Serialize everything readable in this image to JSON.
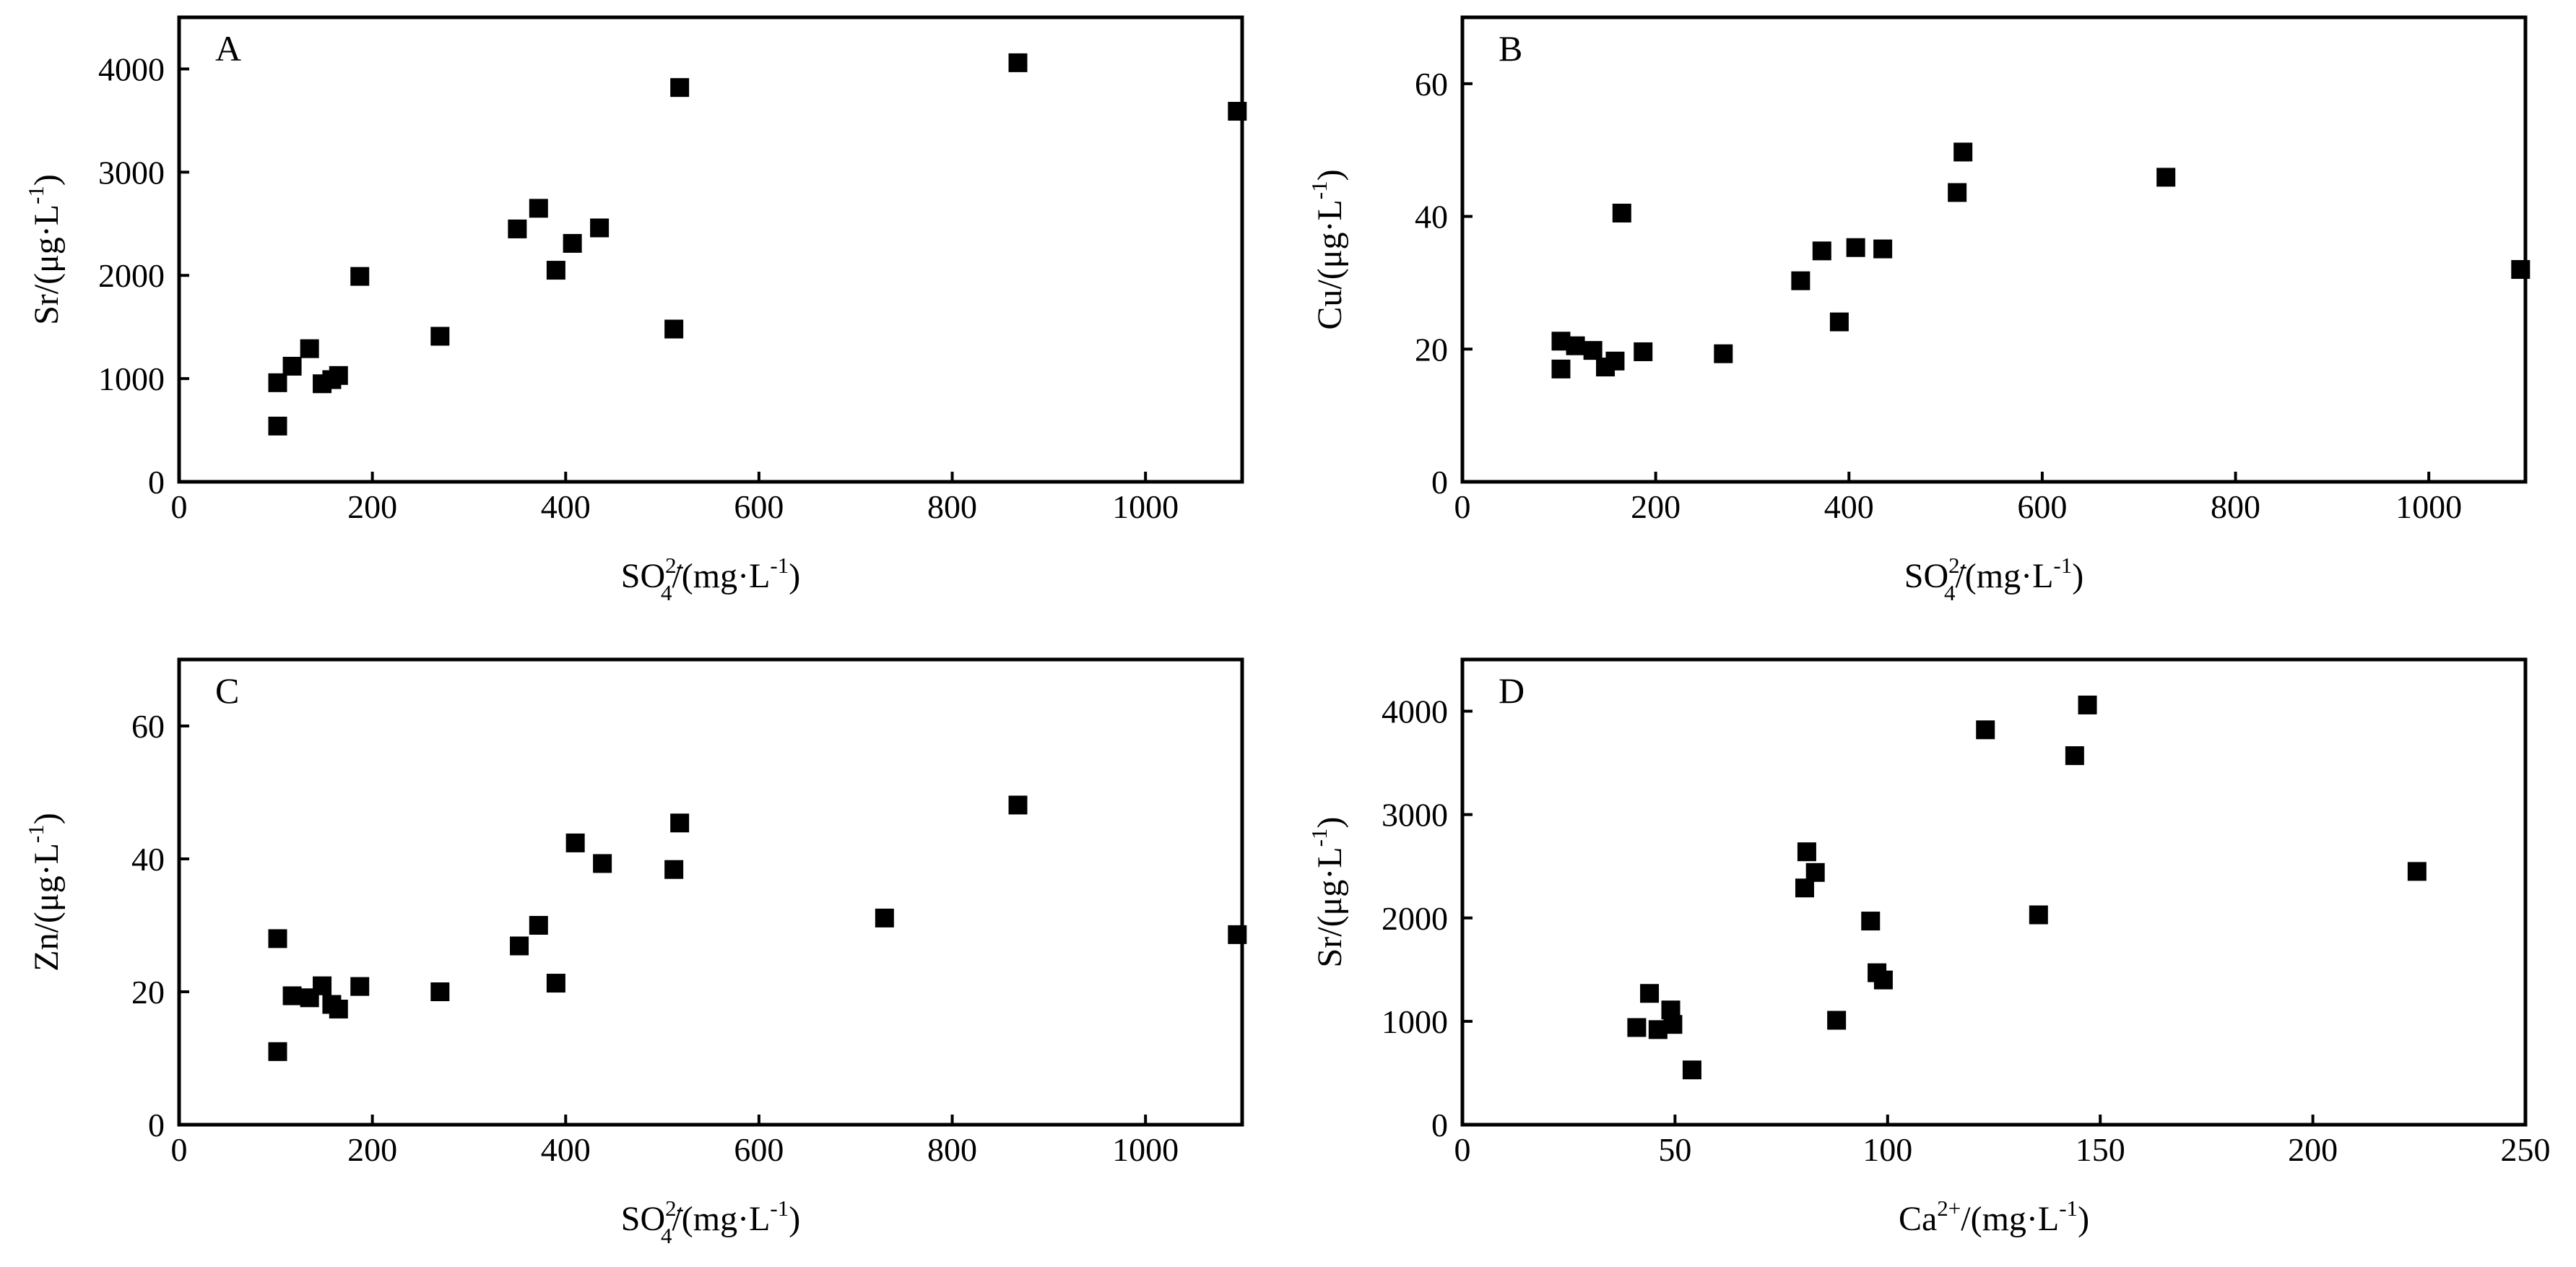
{
  "chart_data": [
    {
      "type": "scatter",
      "panel": "A",
      "xlim": [
        0,
        1100
      ],
      "ylim": [
        0,
        4500
      ],
      "x_ticks": [
        0,
        200,
        400,
        600,
        800,
        1000
      ],
      "y_ticks": [
        0,
        1000,
        2000,
        3000,
        4000
      ],
      "xlabel": {
        "base": "SO",
        "sub": "4",
        "sup": "2-",
        "rest": "/(mg·L",
        "unit_sup": "-1",
        "close": ")"
      },
      "ylabel": {
        "base": "Sr/(μg·L",
        "sup": "-1",
        "close": ")"
      },
      "marker_color": "#000000",
      "points": [
        {
          "x": 102,
          "y": 540
        },
        {
          "x": 102,
          "y": 960
        },
        {
          "x": 117,
          "y": 1120
        },
        {
          "x": 135,
          "y": 1290
        },
        {
          "x": 148,
          "y": 950
        },
        {
          "x": 158,
          "y": 990
        },
        {
          "x": 165,
          "y": 1030
        },
        {
          "x": 187,
          "y": 1990
        },
        {
          "x": 270,
          "y": 1410
        },
        {
          "x": 350,
          "y": 2450
        },
        {
          "x": 372,
          "y": 2650
        },
        {
          "x": 390,
          "y": 2050
        },
        {
          "x": 407,
          "y": 2310
        },
        {
          "x": 435,
          "y": 2460
        },
        {
          "x": 512,
          "y": 1480
        },
        {
          "x": 518,
          "y": 3820
        },
        {
          "x": 868,
          "y": 4060
        },
        {
          "x": 1095,
          "y": 3590
        }
      ]
    },
    {
      "type": "scatter",
      "panel": "B",
      "xlim": [
        0,
        1100
      ],
      "ylim": [
        0,
        70
      ],
      "x_ticks": [
        0,
        200,
        400,
        600,
        800,
        1000
      ],
      "y_ticks": [
        0,
        20,
        40,
        60
      ],
      "xlabel": {
        "base": "SO",
        "sub": "4",
        "sup": "2-",
        "rest": "/(mg·L",
        "unit_sup": "-1",
        "close": ")"
      },
      "ylabel": {
        "base": "Cu/(μg·L",
        "sup": "-1",
        "close": ")"
      },
      "marker_color": "#000000",
      "points": [
        {
          "x": 102,
          "y": 17
        },
        {
          "x": 102,
          "y": 21.2
        },
        {
          "x": 117,
          "y": 20.5
        },
        {
          "x": 135,
          "y": 19.8
        },
        {
          "x": 148,
          "y": 17.3
        },
        {
          "x": 158,
          "y": 18.2
        },
        {
          "x": 165,
          "y": 40.5
        },
        {
          "x": 187,
          "y": 19.6
        },
        {
          "x": 270,
          "y": 19.3
        },
        {
          "x": 350,
          "y": 30.3
        },
        {
          "x": 372,
          "y": 34.8
        },
        {
          "x": 390,
          "y": 24.1
        },
        {
          "x": 407,
          "y": 35.3
        },
        {
          "x": 435,
          "y": 35.1
        },
        {
          "x": 512,
          "y": 43.6
        },
        {
          "x": 518,
          "y": 49.7
        },
        {
          "x": 728,
          "y": 45.9
        },
        {
          "x": 1095,
          "y": 32
        }
      ]
    },
    {
      "type": "scatter",
      "panel": "C",
      "xlim": [
        0,
        1100
      ],
      "ylim": [
        0,
        70
      ],
      "x_ticks": [
        0,
        200,
        400,
        600,
        800,
        1000
      ],
      "y_ticks": [
        0,
        20,
        40,
        60
      ],
      "xlabel": {
        "base": "SO",
        "sub": "4",
        "sup": "2-",
        "rest": "/(mg·L",
        "unit_sup": "-1",
        "close": ")"
      },
      "ylabel": {
        "base": "Zn/(μg·L",
        "sup": "-1",
        "close": ")"
      },
      "marker_color": "#000000",
      "points": [
        {
          "x": 102,
          "y": 11
        },
        {
          "x": 102,
          "y": 28
        },
        {
          "x": 117,
          "y": 19.4
        },
        {
          "x": 135,
          "y": 19.1
        },
        {
          "x": 148,
          "y": 20.9
        },
        {
          "x": 158,
          "y": 18.1
        },
        {
          "x": 165,
          "y": 17.4
        },
        {
          "x": 187,
          "y": 20.8
        },
        {
          "x": 270,
          "y": 20
        },
        {
          "x": 352,
          "y": 26.9
        },
        {
          "x": 372,
          "y": 30
        },
        {
          "x": 390,
          "y": 21.3
        },
        {
          "x": 410,
          "y": 42.4
        },
        {
          "x": 438,
          "y": 39.3
        },
        {
          "x": 512,
          "y": 38.4
        },
        {
          "x": 518,
          "y": 45.4
        },
        {
          "x": 730,
          "y": 31.1
        },
        {
          "x": 868,
          "y": 48.1
        },
        {
          "x": 1095,
          "y": 28.6
        }
      ]
    },
    {
      "type": "scatter",
      "panel": "D",
      "xlim": [
        0,
        250
      ],
      "ylim": [
        0,
        4500
      ],
      "x_ticks": [
        0,
        50,
        100,
        150,
        200,
        250
      ],
      "y_ticks": [
        0,
        1000,
        2000,
        3000,
        4000
      ],
      "xlabel": {
        "base": "Ca",
        "sup": "2+",
        "rest": "/(mg·L",
        "unit_sup": "-1",
        "close": ")"
      },
      "ylabel": {
        "base": "Sr/(μg·L",
        "sup": "-1",
        "close": ")"
      },
      "marker_color": "#000000",
      "points": [
        {
          "x": 41,
          "y": 940
        },
        {
          "x": 44,
          "y": 1270
        },
        {
          "x": 46,
          "y": 920
        },
        {
          "x": 49,
          "y": 1110
        },
        {
          "x": 49.5,
          "y": 970
        },
        {
          "x": 54,
          "y": 530
        },
        {
          "x": 80.5,
          "y": 2290
        },
        {
          "x": 81,
          "y": 2640
        },
        {
          "x": 83,
          "y": 2440
        },
        {
          "x": 88,
          "y": 1010
        },
        {
          "x": 96,
          "y": 1970
        },
        {
          "x": 97.5,
          "y": 1470
        },
        {
          "x": 99,
          "y": 1400
        },
        {
          "x": 123,
          "y": 3820
        },
        {
          "x": 135.5,
          "y": 2030
        },
        {
          "x": 144,
          "y": 3570
        },
        {
          "x": 147,
          "y": 4060
        },
        {
          "x": 224.5,
          "y": 2450
        }
      ]
    }
  ]
}
